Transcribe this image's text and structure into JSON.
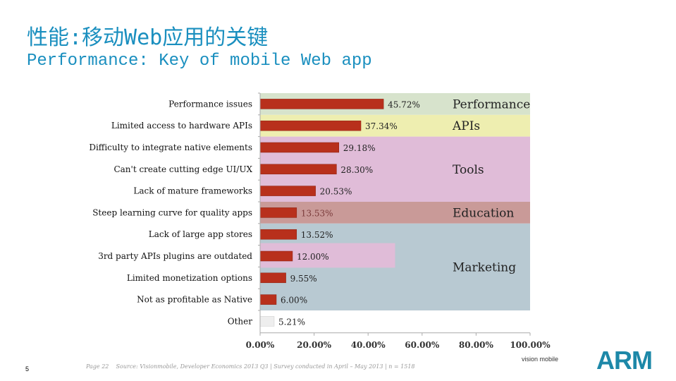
{
  "title_cn": "性能:移动Web应用的关键",
  "title_en": "Performance: Key of mobile Web app",
  "page_number": "5",
  "footer": {
    "page_label": "Page 22",
    "source": "Source: Visionmobile, Developer Economics 2013 Q3 | Survey conducted in April – May 2013 | n = 1518",
    "logo_visionmobile": "vision mobile",
    "logo_arm": "ARM"
  },
  "chart_data": {
    "type": "bar",
    "orientation": "horizontal",
    "categories": [
      "Performance issues",
      "Limited access to hardware APIs",
      "Difficulty to integrate native elements",
      "Can't create cutting edge UI/UX",
      "Lack of mature frameworks",
      "Steep learning curve for quality apps",
      "Lack of large app stores",
      "3rd party APIs plugins are outdated",
      "Limited monetization options",
      "Not as profitable as Native",
      "Other"
    ],
    "values": [
      45.72,
      37.34,
      29.18,
      28.3,
      20.53,
      13.53,
      13.52,
      12.0,
      9.55,
      6.0,
      5.21
    ],
    "labels": [
      "45.72%",
      "37.34%",
      "29.18%",
      "28.30%",
      "20.53%",
      "13.53%",
      "13.52%",
      "12.00%",
      "9.55%",
      "6.00%",
      "5.21%"
    ],
    "xlim": [
      0,
      100
    ],
    "xticks": [
      "0.00%",
      "20.00%",
      "40.00%",
      "60.00%",
      "80.00%",
      "100.00%"
    ],
    "groups": [
      {
        "name": "Performance",
        "rows": [
          0,
          0
        ],
        "color": "#d7e3cc"
      },
      {
        "name": "APIs",
        "rows": [
          1,
          1
        ],
        "color": "#eeeeb0"
      },
      {
        "name": "Tools",
        "rows": [
          2,
          4
        ],
        "color": "#e0bcd8"
      },
      {
        "name": "Education",
        "rows": [
          5,
          5
        ],
        "color": "#c99a98"
      },
      {
        "name": "Marketing",
        "rows": [
          6,
          9
        ],
        "color": "#b8c9d2"
      }
    ],
    "bar_color": "#b8301c",
    "other_color": "#eeeeee"
  }
}
